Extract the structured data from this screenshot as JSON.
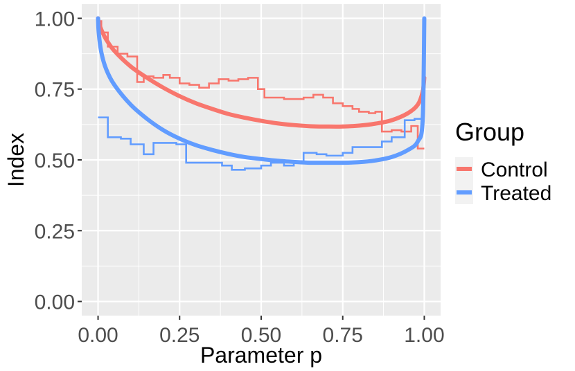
{
  "chart_data": {
    "type": "line",
    "title": "",
    "xlabel": "Parameter p",
    "ylabel": "Index",
    "xlim": [
      -0.05,
      1.05
    ],
    "ylim": [
      -0.05,
      1.05
    ],
    "x_ticks": [
      0.0,
      0.25,
      0.5,
      0.75,
      1.0
    ],
    "x_tick_labels": [
      "0.00",
      "0.25",
      "0.50",
      "0.75",
      "1.00"
    ],
    "y_ticks": [
      0.0,
      0.25,
      0.5,
      0.75,
      1.0
    ],
    "y_tick_labels": [
      "0.00",
      "0.25",
      "0.50",
      "0.75",
      "1.00"
    ],
    "grid": true,
    "legend": {
      "title": "Group",
      "position": "right",
      "entries": [
        "Control",
        "Treated"
      ]
    },
    "series": [
      {
        "name": "Control",
        "color": "#F8766D",
        "smooth_curve": {
          "x": [
            0.0,
            0.002,
            0.01,
            0.025,
            0.05,
            0.1,
            0.15,
            0.2,
            0.25,
            0.3,
            0.35,
            0.4,
            0.45,
            0.5,
            0.55,
            0.6,
            0.65,
            0.7,
            0.75,
            0.8,
            0.85,
            0.9,
            0.95,
            0.98,
            0.995,
            1.0
          ],
          "y": [
            1.0,
            0.985,
            0.96,
            0.925,
            0.885,
            0.83,
            0.79,
            0.755,
            0.725,
            0.7,
            0.68,
            0.662,
            0.649,
            0.638,
            0.629,
            0.623,
            0.619,
            0.618,
            0.618,
            0.621,
            0.628,
            0.64,
            0.665,
            0.695,
            0.74,
            0.79
          ]
        },
        "step": {
          "x": [
            0.0,
            0.01,
            0.03,
            0.06,
            0.09,
            0.12,
            0.14,
            0.17,
            0.2,
            0.22,
            0.25,
            0.28,
            0.31,
            0.34,
            0.37,
            0.4,
            0.43,
            0.46,
            0.49,
            0.51,
            0.54,
            0.57,
            0.6,
            0.63,
            0.66,
            0.69,
            0.72,
            0.75,
            0.78,
            0.8,
            0.83,
            0.85,
            0.87,
            0.9,
            0.93,
            0.96,
            0.98
          ],
          "y": [
            0.99,
            0.95,
            0.9,
            0.875,
            0.865,
            0.775,
            0.795,
            0.79,
            0.8,
            0.79,
            0.77,
            0.765,
            0.755,
            0.77,
            0.785,
            0.78,
            0.785,
            0.79,
            0.75,
            0.72,
            0.72,
            0.715,
            0.715,
            0.72,
            0.73,
            0.72,
            0.7,
            0.69,
            0.68,
            0.67,
            0.665,
            0.67,
            0.6,
            0.605,
            0.6,
            0.62,
            0.54
          ]
        }
      },
      {
        "name": "Treated",
        "color": "#619CFF",
        "smooth_curve": {
          "x": [
            0.0,
            0.002,
            0.01,
            0.025,
            0.05,
            0.1,
            0.15,
            0.2,
            0.25,
            0.3,
            0.35,
            0.4,
            0.45,
            0.5,
            0.55,
            0.6,
            0.65,
            0.7,
            0.75,
            0.8,
            0.85,
            0.9,
            0.95,
            0.98,
            0.995,
            1.0
          ],
          "y": [
            1.0,
            0.95,
            0.88,
            0.82,
            0.765,
            0.695,
            0.645,
            0.605,
            0.575,
            0.552,
            0.535,
            0.521,
            0.51,
            0.503,
            0.497,
            0.493,
            0.49,
            0.49,
            0.49,
            0.492,
            0.498,
            0.51,
            0.535,
            0.565,
            0.64,
            1.0
          ]
        },
        "step": {
          "x": [
            0.0,
            0.03,
            0.07,
            0.1,
            0.14,
            0.17,
            0.24,
            0.27,
            0.33,
            0.38,
            0.41,
            0.45,
            0.5,
            0.53,
            0.57,
            0.6,
            0.63,
            0.67,
            0.7,
            0.73,
            0.75,
            0.78,
            0.83,
            0.87,
            0.9,
            0.94,
            0.97
          ],
          "y": [
            0.65,
            0.58,
            0.575,
            0.555,
            0.52,
            0.56,
            0.555,
            0.49,
            0.49,
            0.48,
            0.465,
            0.47,
            0.48,
            0.49,
            0.48,
            0.49,
            0.525,
            0.52,
            0.515,
            0.515,
            0.525,
            0.545,
            0.545,
            0.565,
            0.58,
            0.64,
            0.645
          ]
        }
      }
    ]
  }
}
